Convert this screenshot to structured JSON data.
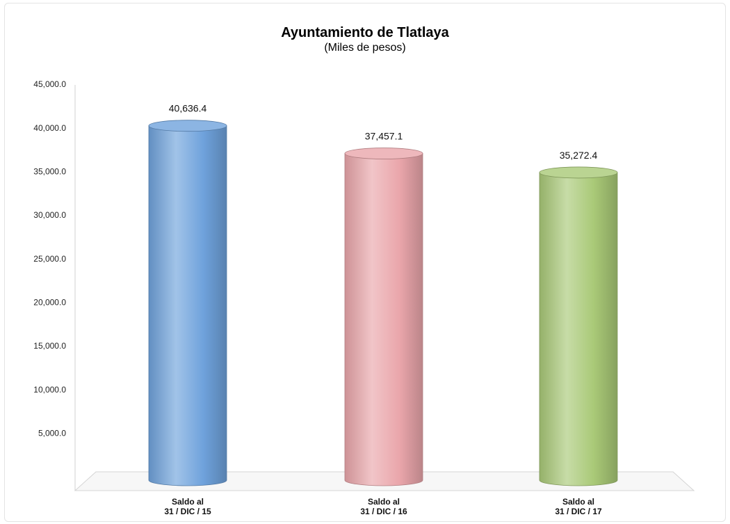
{
  "chart_data": {
    "type": "bar",
    "title": "Ayuntamiento de Tlatlaya",
    "subtitle": "(Miles de pesos)",
    "categories": [
      [
        "Saldo al",
        "31 / DIC / 15"
      ],
      [
        "Saldo al",
        "31 / DIC / 16"
      ],
      [
        "Saldo al",
        "31 / DIC / 17"
      ]
    ],
    "values": [
      40636.4,
      37457.1,
      35272.4
    ],
    "value_labels": [
      "40,636.4",
      "37,457.1",
      "35,272.4"
    ],
    "ylim": [
      0,
      45000
    ],
    "y_ticks": [
      5000,
      10000,
      15000,
      20000,
      25000,
      30000,
      35000,
      40000,
      45000
    ],
    "y_tick_labels": [
      "5,000.0",
      "10,000.0",
      "15,000.0",
      "20,000.0",
      "25,000.0",
      "30,000.0",
      "35,000.0",
      "40,000.0",
      "45,000.0"
    ],
    "colors": [
      "#6fa2dc",
      "#eaa6ab",
      "#a9c977"
    ],
    "grid": false,
    "legend": "none"
  }
}
